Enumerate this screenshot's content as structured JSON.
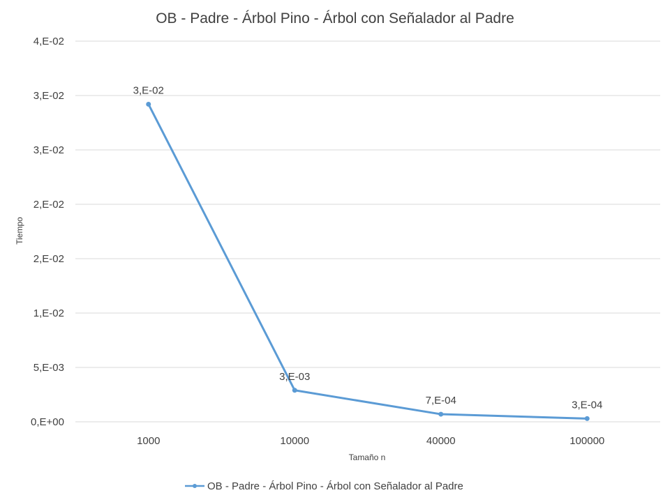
{
  "chart_data": {
    "type": "line",
    "title": "OB - Padre - Árbol Pino - Árbol con Señalador al Padre",
    "xlabel": "Tamaño n",
    "ylabel": "Tiempo",
    "categories": [
      "1000",
      "10000",
      "40000",
      "100000"
    ],
    "series": [
      {
        "name": "OB - Padre - Árbol Pino - Árbol con Señalador al Padre",
        "values": [
          0.0292,
          0.0029,
          0.0007,
          0.0003
        ],
        "data_labels": [
          "3,E-02",
          "3,E-03",
          "7,E-04",
          "3,E-04"
        ],
        "color": "#5b9bd5"
      }
    ],
    "ylim": [
      0,
      0.035
    ],
    "y_ticks": [
      0,
      0.005,
      0.01,
      0.015,
      0.02,
      0.025,
      0.03,
      0.035
    ],
    "y_tick_labels": [
      "0,E+00",
      "5,E-03",
      "1,E-02",
      "2,E-02",
      "2,E-02",
      "3,E-02",
      "3,E-02",
      "4,E-02"
    ],
    "grid": true,
    "legend_position": "bottom"
  }
}
